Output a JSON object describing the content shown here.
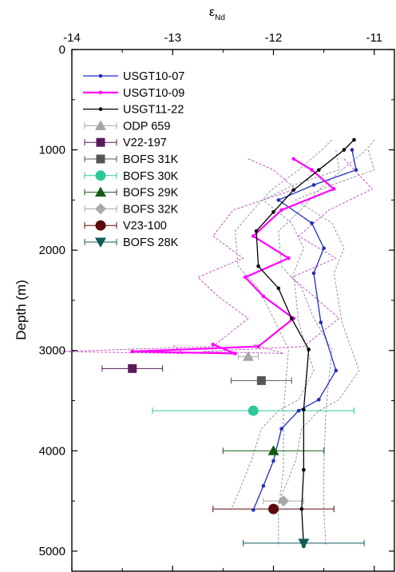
{
  "chart_data": {
    "type": "line",
    "title": "",
    "xlabel_main": "ε",
    "xlabel_sub": "Nd",
    "ylabel": "Depth (m)",
    "xlim": [
      -14,
      -10.8
    ],
    "ylim": [
      0,
      5200
    ],
    "x_ticks": [
      -14,
      -13,
      -12,
      -11
    ],
    "y_ticks": [
      0,
      1000,
      2000,
      3000,
      4000,
      5000
    ],
    "x_axis_position": "top",
    "y_inverted": true,
    "grid": false,
    "legend_position": "top-left",
    "series": [
      {
        "name": "USGT10-07",
        "kind": "line",
        "color": "#1f2fbf",
        "marker": "circle",
        "points": [
          [
            -11.22,
            1000
          ],
          [
            -11.18,
            1200
          ],
          [
            -11.6,
            1350
          ],
          [
            -11.95,
            1500
          ],
          [
            -11.62,
            1730
          ],
          [
            -11.5,
            1980
          ],
          [
            -11.6,
            2230
          ],
          [
            -11.53,
            2720
          ],
          [
            -11.38,
            3200
          ],
          [
            -11.55,
            3490
          ],
          [
            -11.75,
            3600
          ],
          [
            -11.92,
            3780
          ],
          [
            -12.0,
            4100
          ],
          [
            -12.1,
            4350
          ],
          [
            -12.2,
            4590
          ]
        ],
        "band_lo": [
          -11.38,
          -11.35,
          -11.8,
          -12.1,
          -11.82,
          -11.7,
          -11.8,
          -11.75,
          -11.6,
          -11.75,
          -11.95,
          -12.12,
          -12.22,
          -12.32,
          -12.42
        ],
        "band_hi": [
          -11.06,
          -11.0,
          -11.42,
          -11.78,
          -11.42,
          -11.3,
          -11.4,
          -11.32,
          -11.15,
          -11.35,
          -11.55,
          -11.72,
          -11.78,
          -11.88,
          -11.98
        ]
      },
      {
        "name": "USGT10-09",
        "kind": "line",
        "color": "#ff00ff",
        "marker": "circle",
        "points": [
          [
            -11.8,
            1090
          ],
          [
            -11.62,
            1200
          ],
          [
            -11.4,
            1390
          ],
          [
            -11.92,
            1600
          ],
          [
            -12.2,
            1860
          ],
          [
            -11.85,
            2080
          ],
          [
            -12.28,
            2270
          ],
          [
            -12.1,
            2460
          ],
          [
            -11.8,
            2680
          ],
          [
            -12.15,
            2960
          ],
          [
            -13.4,
            3010
          ],
          [
            -12.38,
            3030
          ],
          [
            -12.6,
            2940
          ]
        ],
        "band_lo": [
          -12.25,
          -12.0,
          -11.78,
          -12.4,
          -12.6,
          -12.3,
          -12.75,
          -12.55,
          -12.25,
          -12.6,
          -14.1,
          -12.9,
          -13.0
        ],
        "band_hi": [
          -11.3,
          -11.2,
          -11.02,
          -11.45,
          -11.75,
          -11.38,
          -11.82,
          -11.6,
          -11.35,
          -11.7,
          -12.7,
          -11.9,
          -12.2
        ]
      },
      {
        "name": "USGT11-22",
        "kind": "line",
        "color": "#000000",
        "marker": "circle",
        "points": [
          [
            -11.2,
            900
          ],
          [
            -11.3,
            1000
          ],
          [
            -11.55,
            1200
          ],
          [
            -11.8,
            1400
          ],
          [
            -12.0,
            1620
          ],
          [
            -12.17,
            1810
          ],
          [
            -12.15,
            2160
          ],
          [
            -11.95,
            2380
          ],
          [
            -11.82,
            2680
          ],
          [
            -11.65,
            2990
          ],
          [
            -11.7,
            3590
          ],
          [
            -11.7,
            4190
          ],
          [
            -11.72,
            4580
          ],
          [
            -11.7,
            4950
          ]
        ],
        "band_lo": [
          -11.42,
          -11.52,
          -11.75,
          -12.02,
          -12.22,
          -12.38,
          -12.35,
          -12.15,
          -12.0,
          -11.85,
          -11.9,
          -11.9,
          -11.95,
          -11.95
        ],
        "band_hi": [
          -11.0,
          -11.08,
          -11.32,
          -11.55,
          -11.75,
          -11.95,
          -11.92,
          -11.72,
          -11.6,
          -11.42,
          -11.48,
          -11.5,
          -11.5,
          -11.48
        ]
      },
      {
        "name": "ODP 659",
        "kind": "point",
        "color": "#a5a5a5",
        "marker": "triangle-up",
        "points": [
          [
            -12.25,
            3060
          ]
        ],
        "xerr": [
          0.1
        ]
      },
      {
        "name": "V22-197",
        "kind": "point",
        "color": "#5a1a5a",
        "marker": "square",
        "points": [
          [
            -13.4,
            3180
          ]
        ],
        "xerr": [
          0.3
        ]
      },
      {
        "name": "BOFS 31K",
        "kind": "point",
        "color": "#555555",
        "marker": "square",
        "points": [
          [
            -12.12,
            3300
          ]
        ],
        "xerr": [
          0.3
        ]
      },
      {
        "name": "BOFS 30K",
        "kind": "point",
        "color": "#2ec99a",
        "marker": "circle-large",
        "points": [
          [
            -12.2,
            3600
          ]
        ],
        "xerr": [
          1.0
        ]
      },
      {
        "name": "BOFS 29K",
        "kind": "point",
        "color": "#145a14",
        "marker": "triangle-up",
        "points": [
          [
            -12.0,
            4000
          ]
        ],
        "xerr": [
          0.5
        ]
      },
      {
        "name": "BOFS 32K",
        "kind": "point",
        "color": "#a9a9a9",
        "marker": "diamond",
        "points": [
          [
            -11.9,
            4500
          ]
        ],
        "xerr": [
          0.2
        ]
      },
      {
        "name": "V23-100",
        "kind": "point",
        "color": "#5a0a0a",
        "marker": "circle-large",
        "points": [
          [
            -12.0,
            4580
          ]
        ],
        "xerr": [
          0.6
        ]
      },
      {
        "name": "BOFS 28K",
        "kind": "point",
        "color": "#135a5a",
        "marker": "triangle-down",
        "points": [
          [
            -11.7,
            4920
          ]
        ],
        "xerr": [
          0.6
        ]
      }
    ]
  }
}
